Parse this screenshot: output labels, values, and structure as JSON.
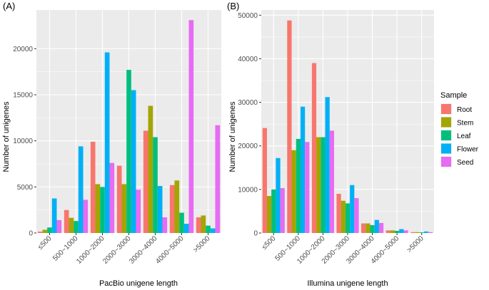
{
  "figure": {
    "legend": {
      "title": "Sample",
      "placement": "right",
      "entries": [
        {
          "label": "Root",
          "color": "#F8766D"
        },
        {
          "label": "Stem",
          "color": "#A3A500"
        },
        {
          "label": "Leaf",
          "color": "#00BF7D"
        },
        {
          "label": "Flower",
          "color": "#00B0F6"
        },
        {
          "label": "Seed",
          "color": "#E76BF3"
        }
      ]
    },
    "panel_background": "#EBEBEB",
    "grid_color": "#FFFFFF"
  },
  "chart_data": [
    {
      "type": "bar",
      "panel_tag": "(A)",
      "xlabel": "PacBio unigene length",
      "ylabel": "Number of unigenes",
      "grid": true,
      "ylim": [
        0,
        24200
      ],
      "yticks": [
        0,
        5000,
        10000,
        15000,
        20000
      ],
      "ytick_labels": [
        "0",
        "5000",
        "10000",
        "15000",
        "20000"
      ],
      "categories": [
        "≤500",
        "500~1000",
        "1000~2000",
        "2000~3000",
        "3000~4000",
        "4000~5000",
        ">5000"
      ],
      "series": [
        {
          "name": "Root",
          "values": [
            150,
            2500,
            9900,
            7300,
            11100,
            5200,
            1700
          ]
        },
        {
          "name": "Stem",
          "values": [
            350,
            1650,
            5300,
            5300,
            13800,
            5700,
            1900
          ]
        },
        {
          "name": "Leaf",
          "values": [
            600,
            1300,
            5000,
            17700,
            10400,
            2200,
            800
          ]
        },
        {
          "name": "Flower",
          "values": [
            3750,
            9400,
            19600,
            15500,
            5100,
            1000,
            500
          ]
        },
        {
          "name": "Seed",
          "values": [
            1400,
            3600,
            7600,
            4700,
            1700,
            23100,
            11700
          ]
        }
      ]
    },
    {
      "type": "bar",
      "panel_tag": "(B)",
      "xlabel": "Illumina unigene length",
      "ylabel": "Number of unigenes",
      "grid": true,
      "ylim": [
        0,
        51200
      ],
      "yticks": [
        0,
        10000,
        20000,
        30000,
        40000,
        50000
      ],
      "ytick_labels": [
        "0",
        "10000",
        "20000",
        "30000",
        "40000",
        "50000"
      ],
      "categories": [
        "≤500",
        "500~1000",
        "1000~2000",
        "2000~3000",
        "3000~4000",
        "4000~5000",
        ">5000"
      ],
      "series": [
        {
          "name": "Root",
          "values": [
            24100,
            48800,
            39000,
            9000,
            2200,
            600,
            200
          ]
        },
        {
          "name": "Stem",
          "values": [
            8500,
            19000,
            22000,
            7400,
            2200,
            600,
            200
          ]
        },
        {
          "name": "Leaf",
          "values": [
            10000,
            21600,
            22000,
            6800,
            1800,
            500,
            150
          ]
        },
        {
          "name": "Flower",
          "values": [
            17200,
            29000,
            31200,
            11000,
            3000,
            900,
            350
          ]
        },
        {
          "name": "Seed",
          "values": [
            10300,
            20900,
            23500,
            8000,
            2300,
            600,
            200
          ]
        }
      ]
    }
  ]
}
